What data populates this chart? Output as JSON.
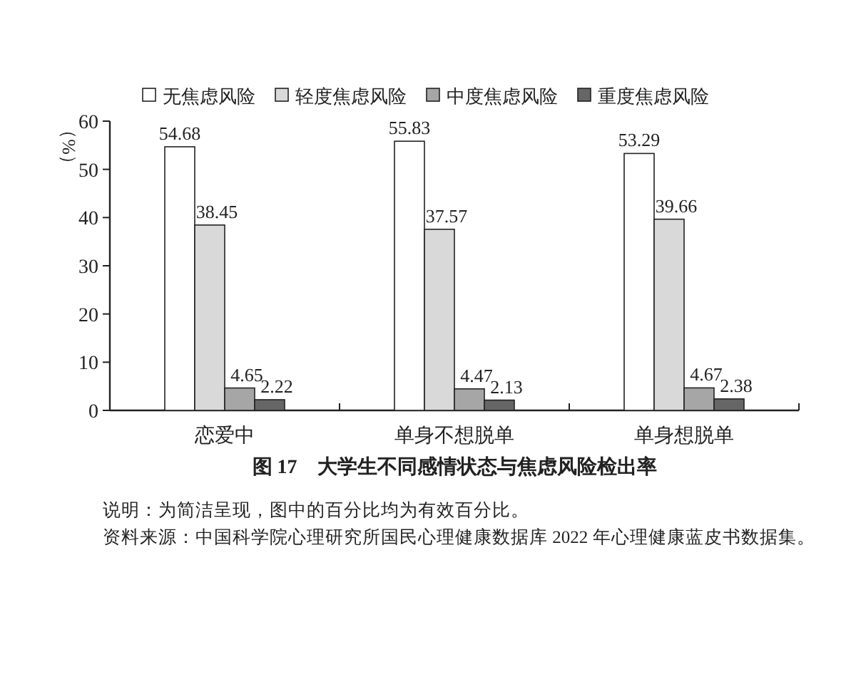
{
  "chart_data": {
    "type": "bar",
    "title": "图 17　大学生不同感情状态与焦虑风险检出率",
    "ylabel": "（%）",
    "categories": [
      "恋爱中",
      "单身不想脱单",
      "单身想脱单"
    ],
    "series": [
      {
        "name": "无焦虑风险",
        "color": "#ffffff",
        "values": [
          54.68,
          55.83,
          53.29
        ]
      },
      {
        "name": "轻度焦虑风险",
        "color": "#d9d9d9",
        "values": [
          38.45,
          37.57,
          39.66
        ]
      },
      {
        "name": "中度焦虑风险",
        "color": "#a6a6a6",
        "values": [
          4.65,
          4.47,
          4.67
        ]
      },
      {
        "name": "重度焦虑风险",
        "color": "#666666",
        "values": [
          2.22,
          2.13,
          2.38
        ]
      }
    ],
    "ylim": [
      0,
      60
    ],
    "yticks": [
      0,
      10,
      20,
      30,
      40,
      50,
      60
    ],
    "data_labels": true,
    "legend": "top",
    "grid": false,
    "annotations": [
      "说明：为简洁呈现，图中的百分比均为有效百分比。",
      "资料来源：中国科学院心理研究所国民心理健康数据库 2022 年心理健康蓝皮书数据集。"
    ]
  }
}
